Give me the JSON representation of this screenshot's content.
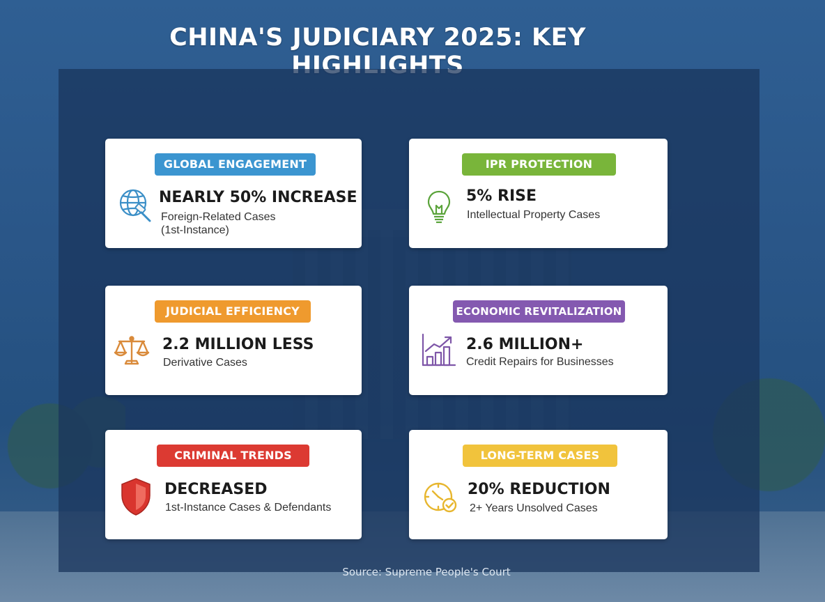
{
  "title": "CHINA'S JUDICIARY 2025: KEY HIGHLIGHTS",
  "cards": [
    {
      "badge": "GLOBAL ENGAGEMENT",
      "badge_color": "#3b95d0",
      "icon": "globe-gavel-icon",
      "stat": "NEARLY 50% INCREASE",
      "subtitle": "Foreign-Related Cases",
      "subtitle2": "(1st-Instance)"
    },
    {
      "badge": "IPR PROTECTION",
      "badge_color": "#79b53a",
      "icon": "lightbulb-icon",
      "stat": "5% RISE",
      "subtitle": "Intellectual Property Cases"
    },
    {
      "badge": "JUDICIAL EFFICIENCY",
      "badge_color": "#ef9a2e",
      "icon": "scales-icon",
      "stat": "2.2 MILLION LESS",
      "subtitle": "Derivative Cases"
    },
    {
      "badge": "ECONOMIC REVITALIZATION",
      "badge_color": "#8459b0",
      "icon": "growth-chart-icon",
      "stat": "2.6 MILLION+",
      "subtitle": "Credit Repairs for Businesses"
    },
    {
      "badge": "CRIMINAL TRENDS",
      "badge_color": "#dc3a32",
      "icon": "shield-icon",
      "stat": "DECREASED",
      "subtitle": "1st-Instance Cases & Defendants"
    },
    {
      "badge": "LONG-TERM CASES",
      "badge_color": "#f1c33c",
      "icon": "clock-check-icon",
      "stat": "20% REDUCTION",
      "subtitle": "2+ Years Unsolved Cases"
    }
  ],
  "source": "Source: Supreme People's Court"
}
